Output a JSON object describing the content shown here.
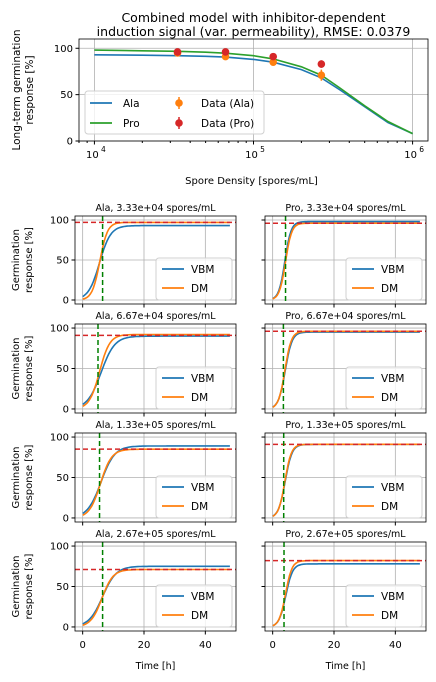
{
  "colors": {
    "ala": "#1f77b4",
    "pro": "#2ca02c",
    "data_ala": "#ff7f0e",
    "data_pro": "#d62728",
    "vbm": "#1f77b4",
    "dm": "#ff7f0e",
    "hline": "#d62728",
    "vline": "#008000",
    "grid": "#b0b0b0"
  },
  "chart_data": [
    {
      "type": "line",
      "title_line1": "Combined model with inhibitor-dependent",
      "title_line2": "induction signal (var. permeability), RMSE: 0.0379",
      "xlabel": "Spore Density [spores/mL]",
      "ylabel_line1": "Long-term germination",
      "ylabel_line2": "response [%]",
      "xscale": "log",
      "xlim": [
        8000,
        1250000
      ],
      "ylim": [
        0,
        110
      ],
      "x_ticks": [
        10000,
        100000,
        1000000
      ],
      "x_tick_labels": [
        {
          "base": "10",
          "exp": "4"
        },
        {
          "base": "10",
          "exp": "5"
        },
        {
          "base": "10",
          "exp": "6"
        }
      ],
      "y_ticks": [
        0,
        50,
        100
      ],
      "grid": true,
      "legend_location": "lower-left",
      "legend": [
        "Ala",
        "Pro",
        "Data (Ala)",
        "Data (Pro)"
      ],
      "series": [
        {
          "name": "Ala",
          "x": [
            10000,
            20000,
            33300,
            50000,
            66700,
            100000,
            133000,
            200000,
            267000,
            350000,
            500000,
            700000,
            1000000
          ],
          "y": [
            93,
            92.5,
            92,
            91.3,
            90.5,
            88,
            85,
            77,
            68,
            55,
            37,
            20,
            8
          ]
        },
        {
          "name": "Pro",
          "x": [
            10000,
            20000,
            33300,
            50000,
            66700,
            100000,
            133000,
            200000,
            267000,
            350000,
            500000,
            700000,
            1000000
          ],
          "y": [
            98,
            97.3,
            96.7,
            95.8,
            94.7,
            92,
            88.5,
            80,
            71,
            57,
            38,
            21,
            8
          ]
        },
        {
          "name": "Data (Ala)",
          "x": [
            33300,
            66700,
            133000,
            267000
          ],
          "y": [
            95,
            91,
            85,
            71
          ],
          "err": [
            2,
            2,
            3,
            6
          ]
        },
        {
          "name": "Data (Pro)",
          "x": [
            33300,
            66700,
            133000,
            267000
          ],
          "y": [
            96,
            96,
            91,
            83
          ],
          "err": [
            2,
            2,
            2,
            4
          ]
        }
      ]
    },
    {
      "type": "line",
      "panels": [
        {
          "title": "Ala, 3.33e+04 spores/mL",
          "hline": 97,
          "vline": 6.5,
          "vbm_final": 93,
          "vbm_t50": 5.5,
          "vbm_k": 0.55,
          "dm_final": 97,
          "dm_t50": 5.6,
          "dm_k": 0.8
        },
        {
          "title": "Pro, 3.33e+04 spores/mL",
          "hline": 96,
          "vline": 4.2,
          "vbm_final": 98,
          "vbm_t50": 4.0,
          "vbm_k": 1.0,
          "dm_final": 96,
          "dm_t50": 4.2,
          "dm_k": 1.0
        },
        {
          "title": "Ala, 6.67e+04 spores/mL",
          "hline": 91,
          "vline": 5.0,
          "vbm_final": 90,
          "vbm_t50": 6.0,
          "vbm_k": 0.45,
          "dm_final": 92,
          "dm_t50": 5.5,
          "dm_k": 0.6
        },
        {
          "title": "Pro, 6.67e+04 spores/mL",
          "hline": 96,
          "vline": 3.5,
          "vbm_final": 95,
          "vbm_t50": 4.1,
          "vbm_k": 0.9,
          "dm_final": 96,
          "dm_t50": 4.0,
          "dm_k": 0.95
        },
        {
          "title": "Ala, 1.33e+05 spores/mL",
          "hline": 85,
          "vline": 5.5,
          "vbm_final": 89,
          "vbm_t50": 6.0,
          "vbm_k": 0.45,
          "dm_final": 85,
          "dm_t50": 5.8,
          "dm_k": 0.55
        },
        {
          "title": "Pro, 1.33e+05 spores/mL",
          "hline": 91,
          "vline": 3.6,
          "vbm_final": 91,
          "vbm_t50": 4.1,
          "vbm_k": 0.9,
          "dm_final": 91,
          "dm_t50": 4.0,
          "dm_k": 0.95
        },
        {
          "title": "Ala, 2.67e+05 spores/mL",
          "hline": 71,
          "vline": 6.5,
          "vbm_final": 75,
          "vbm_t50": 6.5,
          "vbm_k": 0.45,
          "dm_final": 71,
          "dm_t50": 6.3,
          "dm_k": 0.55
        },
        {
          "title": "Pro, 2.67e+05 spores/mL",
          "hline": 82,
          "vline": 3.7,
          "vbm_final": 78,
          "vbm_t50": 4.3,
          "vbm_k": 0.9,
          "dm_final": 82,
          "dm_t50": 4.2,
          "dm_k": 0.95
        }
      ],
      "series_names": [
        "VBM",
        "DM"
      ],
      "xlim": [
        -2.5,
        50
      ],
      "ylim": [
        -5,
        105
      ],
      "x_ticks": [
        0,
        20,
        40
      ],
      "y_ticks": [
        0,
        50,
        100
      ],
      "xlabel": "Time [h]",
      "ylabel_line1": "Germination",
      "ylabel_line2": "response [%]",
      "grid": true,
      "legend_location": "lower-right"
    }
  ]
}
